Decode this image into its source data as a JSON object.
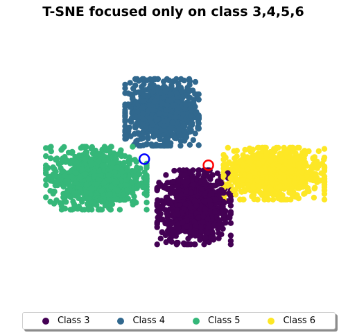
{
  "chart_data": {
    "type": "scatter",
    "title": "T-SNE focused only on class 3,4,5,6",
    "xlabel": "",
    "ylabel": "",
    "axes_visible": false,
    "grid": false,
    "legend_placement": "bottom-center",
    "series": [
      {
        "name": "Class 3",
        "color": "#440154",
        "cluster": {
          "center": [
            0.9,
            -1.6
          ],
          "spread": [
            1.9,
            2.0
          ],
          "count": 900
        }
      },
      {
        "name": "Class 4",
        "color": "#31688e",
        "cluster": {
          "center": [
            -1.1,
            4.6
          ],
          "spread": [
            1.9,
            1.8
          ],
          "count": 900
        }
      },
      {
        "name": "Class 5",
        "color": "#35b779",
        "cluster": {
          "center": [
            -5.2,
            0.3
          ],
          "spread": [
            2.6,
            1.7
          ],
          "count": 900
        }
      },
      {
        "name": "Class 6",
        "color": "#fde725",
        "cluster": {
          "center": [
            5.9,
            0.6
          ],
          "spread": [
            2.6,
            1.4
          ],
          "count": 900
        }
      }
    ],
    "highlights": [
      {
        "color": "#0000ff",
        "x": -2.2,
        "y": 1.55
      },
      {
        "color": "#ff0000",
        "x": 1.8,
        "y": 1.15
      }
    ],
    "xlim": [
      -10,
      10
    ],
    "ylim": [
      -7,
      9
    ]
  }
}
